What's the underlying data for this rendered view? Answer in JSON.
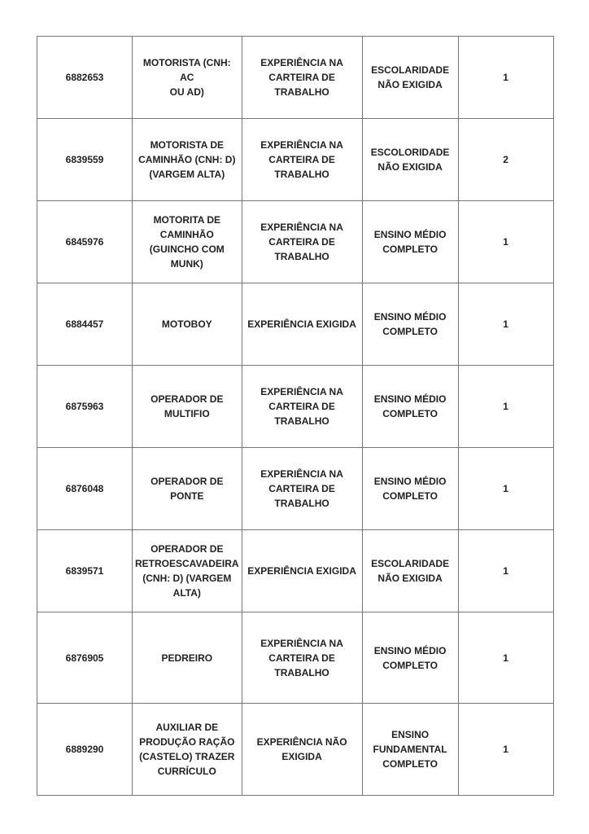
{
  "rows": [
    {
      "code": "6882653",
      "cargo": "MOTORISTA (CNH: AC\nOU AD)",
      "experiencia": "EXPERIÊNCIA NA\nCARTEIRA DE\nTRABALHO",
      "escolaridade": "ESCOLARIDADE\nNÃO EXIGIDA",
      "vagas": "1"
    },
    {
      "code": "6839559",
      "cargo": "MOTORISTA DE\nCAMINHÃO (CNH: D)\n(VARGEM ALTA)",
      "experiencia": "EXPERIÊNCIA NA\nCARTEIRA DE\nTRABALHO",
      "escolaridade": "ESCOLORIDADE\nNÃO EXIGIDA",
      "vagas": "2"
    },
    {
      "code": "6845976",
      "cargo": "MOTORITA DE\nCAMINHÃO\n(GUINCHO COM\nMUNK)",
      "experiencia": "EXPERIÊNCIA NA\nCARTEIRA DE\nTRABALHO",
      "escolaridade": "ENSINO MÉDIO\nCOMPLETO",
      "vagas": "1"
    },
    {
      "code": "6884457",
      "cargo": "MOTOBOY",
      "experiencia": "EXPERIÊNCIA EXIGIDA",
      "escolaridade": "ENSINO MÉDIO\nCOMPLETO",
      "vagas": "1"
    },
    {
      "code": "6875963",
      "cargo": "OPERADOR DE\nMULTIFIO",
      "experiencia": "EXPERIÊNCIA NA\nCARTEIRA DE\nTRABALHO",
      "escolaridade": "ENSINO MÉDIO\nCOMPLETO",
      "vagas": "1"
    },
    {
      "code": "6876048",
      "cargo": "OPERADOR DE\nPONTE",
      "experiencia": "EXPERIÊNCIA NA\nCARTEIRA DE\nTRABALHO",
      "escolaridade": "ENSINO MÉDIO\nCOMPLETO",
      "vagas": "1"
    },
    {
      "code": "6839571",
      "cargo": "OPERADOR DE\nRETROESCAVADEIRA\n(CNH: D) (VARGEM\nALTA)",
      "experiencia": "EXPERIÊNCIA EXIGIDA",
      "escolaridade": "ESCOLARIDADE\nNÃO EXIGIDA",
      "vagas": "1"
    },
    {
      "code": "6876905",
      "cargo": "PEDREIRO",
      "experiencia": "EXPERIÊNCIA NA\nCARTEIRA DE\nTRABALHO",
      "escolaridade": "ENSINO MÉDIO\nCOMPLETO",
      "vagas": "1"
    },
    {
      "code": "6889290",
      "cargo": "AUXILIAR DE\nPRODUÇÃO RAÇÃO\n(CASTELO) TRAZER\nCURRÍCULO",
      "experiencia": "EXPERIÊNCIA NÃO\nEXIGIDA",
      "escolaridade": "ENSINO\nFUNDAMENTAL\nCOMPLETO",
      "vagas": "1"
    }
  ]
}
